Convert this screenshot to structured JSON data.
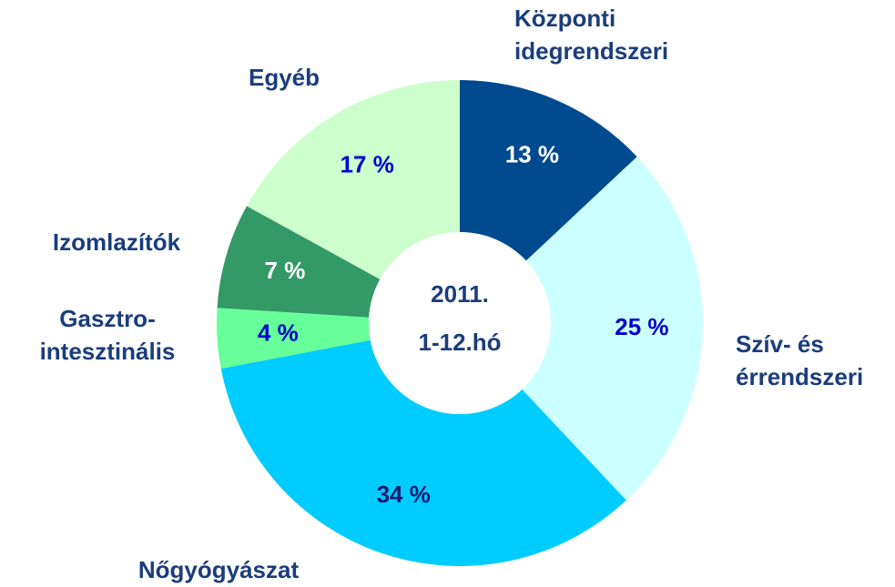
{
  "chart_data": {
    "type": "donut",
    "center_text": [
      "2011.",
      "1-12.hó"
    ],
    "categories": [
      [
        "Központi",
        "idegrendszeri"
      ],
      [
        "Szív- és",
        "érrendszeri"
      ],
      [
        "Nőgyógyászat"
      ],
      [
        "Gasztro-",
        "intesztinális"
      ],
      [
        "Izomlazítók"
      ],
      [
        "Egyéb"
      ]
    ],
    "values": [
      13,
      25,
      34,
      4,
      7,
      17
    ],
    "value_labels": [
      "13 %",
      "25 %",
      "34 %",
      "4 %",
      "7 %",
      "17 %"
    ],
    "colors": [
      "#004a8f",
      "#ccffff",
      "#00ccff",
      "#66ff99",
      "#339966",
      "#ccffcc"
    ],
    "label_colors": [
      "#ffffff",
      "#0000cc",
      "#1a1a6e",
      "#0000cc",
      "#ffffff",
      "#0000cc"
    ]
  }
}
